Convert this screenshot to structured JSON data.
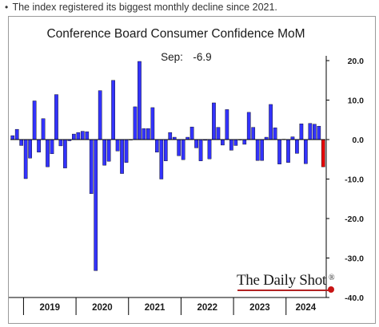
{
  "caption": {
    "bullet": "•",
    "text": "The index registered its biggest monthly decline since 2021."
  },
  "brand": {
    "name": "The Daily Shot",
    "mark": "®"
  },
  "colors": {
    "bar": "#3333ff",
    "bar_highlight": "#e60000",
    "bar_outline": "#000000"
  },
  "chart_data": {
    "type": "bar",
    "title": "Conference Board Consumer Confidence MoM",
    "annotation": {
      "label": "Sep:",
      "value": "-6.9"
    },
    "xlabel": "",
    "ylabel": "",
    "ylim": [
      -40,
      20
    ],
    "y_axis_position": "right",
    "y_ticks": [
      20,
      10,
      0,
      -10,
      -20,
      -30,
      -40
    ],
    "y_tick_labels": [
      "20.0",
      "10.0",
      "0.0",
      "-10.0",
      "-20.0",
      "-30.0",
      "-40.0"
    ],
    "year_labels": [
      "2019",
      "2020",
      "2021",
      "2022",
      "2023",
      "2024"
    ],
    "grid": false,
    "legend": "none",
    "start": "2018-10",
    "end": "2024-09",
    "values": [
      1.0,
      2.6,
      -1.5,
      -9.9,
      -4.7,
      9.8,
      -3.2,
      5.3,
      -6.9,
      -3.6,
      11.4,
      -1.6,
      -7.2,
      -0.3,
      1.4,
      1.8,
      2.1,
      2.0,
      -13.7,
      -33.2,
      12.4,
      -6.5,
      -5.5,
      15.0,
      -2.9,
      -8.6,
      -5.8,
      0.0,
      8.3,
      19.8,
      2.8,
      2.8,
      8.1,
      -3.2,
      -10.0,
      -5.4,
      1.8,
      0.6,
      -4.1,
      -5.1,
      0.6,
      3.2,
      -2.1,
      -5.4,
      -0.2,
      -4.9,
      9.3,
      3.1,
      -1.4,
      7.6,
      -2.7,
      -1.5,
      0.0,
      -1.2,
      6.9,
      3.1,
      -5.3,
      -5.3,
      0.6,
      8.9,
      3.0,
      -6.2,
      0.1,
      -5.8,
      0.7,
      -3.5,
      4.0,
      -6.1,
      4.1,
      3.9,
      3.4,
      -6.9
    ],
    "highlight_last": true
  }
}
